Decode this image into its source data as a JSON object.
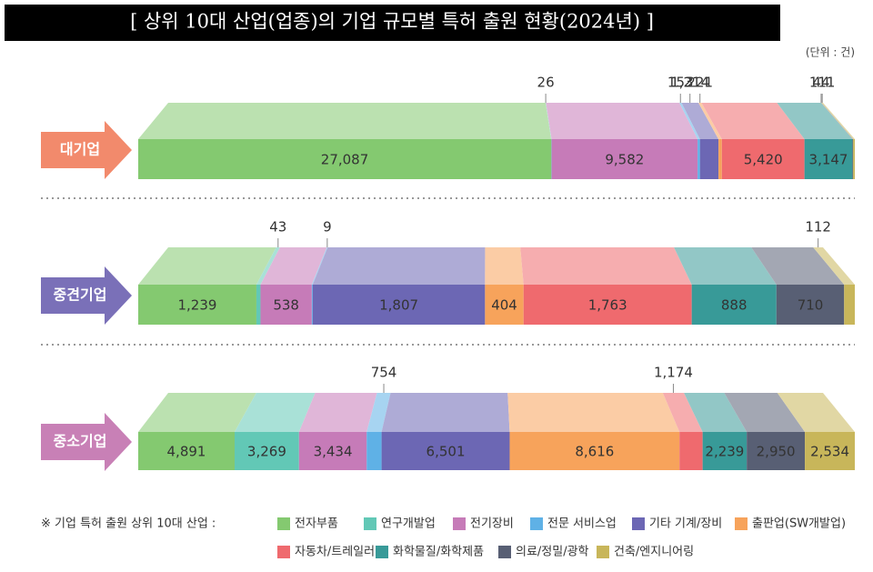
{
  "chart_data": {
    "type": "bar",
    "orientation": "horizontal",
    "stacked": true,
    "title": "[ 상위 10대 산업(업종)의 기업 규모별 특허 출원 현황(2024년) ]",
    "unit": "(단위 : 건)",
    "legend_title": "※ 기업 특허 출원 상위 10대 산업 :",
    "categories": [
      "대기업",
      "중견기업",
      "중소기업"
    ],
    "series": [
      {
        "name": "전자부품",
        "color": "#84c970",
        "values": [
          27087,
          1239,
          4891
        ],
        "value_labels": [
          "27,087",
          "1,239",
          "4,891"
        ]
      },
      {
        "name": "연구개발업",
        "color": "#62c8b6",
        "values": [
          26,
          43,
          3269
        ],
        "value_labels": [
          "26",
          "43",
          "3,269"
        ]
      },
      {
        "name": "전기장비",
        "color": "#c67bb8",
        "values": [
          9582,
          538,
          3434
        ],
        "value_labels": [
          "9,582",
          "538",
          "3,434"
        ]
      },
      {
        "name": "전문 서비스업",
        "color": "#5fb1e6",
        "values": [
          153,
          9,
          754
        ],
        "value_labels": [
          "153",
          "9",
          "754"
        ]
      },
      {
        "name": "기타 기계/장비",
        "color": "#6c67b4",
        "values": [
          1214,
          1807,
          6501
        ],
        "value_labels": [
          "1,214",
          "1,807",
          "6,501"
        ]
      },
      {
        "name": "출판업(SW개발업)",
        "color": "#f7a35b",
        "values": [
          221,
          404,
          8616
        ],
        "value_labels": [
          "221",
          "404",
          "8,616"
        ]
      },
      {
        "name": "자동차/트레일러",
        "color": "#ef6a6e",
        "values": [
          5420,
          1763,
          1174
        ],
        "value_labels": [
          "5,420",
          "1,763",
          "1,174"
        ]
      },
      {
        "name": "화학물질/화학제품",
        "color": "#389a98",
        "values": [
          3147,
          888,
          2239
        ],
        "value_labels": [
          "3,147",
          "888",
          "2,239"
        ]
      },
      {
        "name": "의료/정밀/광학",
        "color": "#585f74",
        "values": [
          44,
          710,
          2950
        ],
        "value_labels": [
          "44",
          "710",
          "2,950"
        ]
      },
      {
        "name": "건축/엔지니어링",
        "color": "#c8b65a",
        "values": [
          111,
          112,
          2534
        ],
        "value_labels": [
          "111",
          "112",
          "2,534"
        ]
      }
    ]
  }
}
